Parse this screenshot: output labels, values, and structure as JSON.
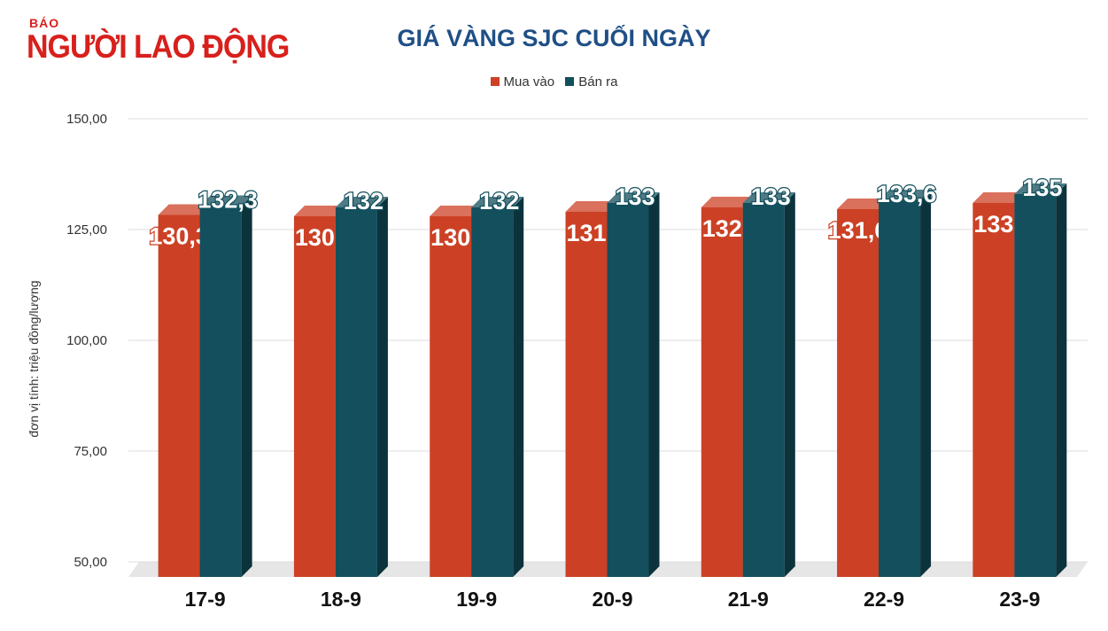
{
  "logo": {
    "top": "BÁO",
    "name": "NGƯỜI LAO ĐỘNG"
  },
  "chart_data": {
    "type": "bar",
    "title": "GIÁ VÀNG SJC CUỐI NGÀY",
    "ylabel": "đơn vị tính: triệu đồng/lượng",
    "xlabel": "",
    "categories": [
      "17-9",
      "18-9",
      "19-9",
      "20-9",
      "21-9",
      "22-9",
      "23-9"
    ],
    "series": [
      {
        "name": "Mua vào",
        "color": "#cc4125",
        "values": [
          130.3,
          130,
          130,
          131,
          132,
          131.6,
          133
        ],
        "labels": [
          "130,3",
          "130",
          "130",
          "131",
          "132",
          "131,6",
          "133"
        ]
      },
      {
        "name": "Bán ra",
        "color": "#134f5c",
        "values": [
          132.3,
          132,
          132,
          133,
          133,
          133.6,
          135
        ],
        "labels": [
          "132,3",
          "132",
          "132",
          "133",
          "133",
          "133,6",
          "135"
        ]
      }
    ],
    "ylim": [
      50,
      150
    ],
    "yticks": [
      "50,00",
      "75,00",
      "100,00",
      "125,00",
      "150,00"
    ],
    "ytick_values": [
      50,
      75,
      100,
      125,
      150
    ],
    "grid": true,
    "legend": "top-center",
    "style": "3d-bar"
  }
}
